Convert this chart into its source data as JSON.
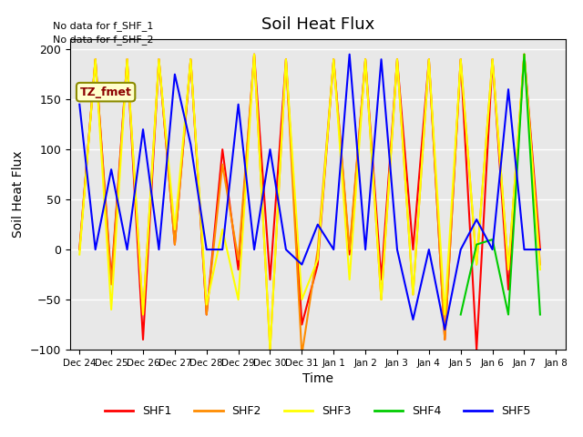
{
  "title": "Soil Heat Flux",
  "ylabel": "Soil Heat Flux",
  "xlabel": "Time",
  "annotations": [
    "No data for f_SHF_1",
    "No data for f_SHF_2"
  ],
  "legend_label": "TZ_fmet",
  "ylim": [
    -100,
    210
  ],
  "series": {
    "SHF1": {
      "color": "#ff0000",
      "x": [
        0,
        0.5,
        1,
        1.5,
        2,
        2.5,
        3,
        3.5,
        4,
        4.5,
        5,
        5.5,
        6,
        6.5,
        7,
        7.5,
        8,
        8.5,
        9,
        9.5,
        10,
        10.5,
        11,
        11.5,
        12,
        12.5,
        13,
        13.5,
        14,
        14.5
      ],
      "y": [
        0,
        190,
        -30,
        190,
        -90,
        190,
        5,
        190,
        -65,
        100,
        -20,
        195,
        -30,
        190,
        -75,
        -15,
        190,
        -5,
        190,
        -30,
        190,
        0,
        190,
        -90,
        190,
        -100,
        190,
        -40,
        195,
        0
      ]
    },
    "SHF2": {
      "color": "#ff8c00",
      "x": [
        0,
        0.5,
        1,
        1.5,
        2,
        2.5,
        3,
        3.5,
        4,
        4.5,
        5,
        5.5,
        6,
        6.5,
        7,
        7.5,
        8,
        8.5,
        9,
        9.5,
        10,
        10.5,
        11,
        11.5,
        12,
        12.5,
        13,
        13.5,
        14,
        14.5
      ],
      "y": [
        0,
        190,
        -35,
        190,
        -65,
        190,
        5,
        190,
        -65,
        85,
        -10,
        195,
        -100,
        190,
        -105,
        0,
        190,
        0,
        190,
        -50,
        190,
        -45,
        190,
        -90,
        190,
        -15,
        190,
        -20,
        195,
        -15
      ]
    },
    "SHF3": {
      "color": "#ffff00",
      "x": [
        0,
        0.5,
        1,
        1.5,
        2,
        2.5,
        3,
        3.5,
        4,
        4.5,
        5,
        5.5,
        6,
        6.5,
        7,
        7.5,
        8,
        8.5,
        9,
        9.5,
        10,
        10.5,
        11,
        11.5,
        12,
        12.5,
        13,
        13.5,
        14,
        14.5
      ],
      "y": [
        -5,
        190,
        -60,
        190,
        -65,
        190,
        20,
        190,
        -55,
        20,
        -50,
        195,
        -100,
        190,
        -50,
        -10,
        190,
        -30,
        190,
        -50,
        190,
        -45,
        190,
        -65,
        190,
        -15,
        190,
        -20,
        195,
        -20
      ]
    },
    "SHF4": {
      "color": "#00cc00",
      "x": [
        12,
        12.5,
        13,
        13.5,
        14,
        14.5
      ],
      "y": [
        -65,
        5,
        10,
        -65,
        195,
        -65
      ]
    },
    "SHF5": {
      "color": "#0000ff",
      "x": [
        0,
        0.5,
        1,
        1.5,
        2,
        2.5,
        3,
        3.5,
        4,
        4.5,
        5,
        5.5,
        6,
        6.5,
        7,
        7.5,
        8,
        8.5,
        9,
        9.5,
        10,
        10.5,
        11,
        11.5,
        12,
        12.5,
        13,
        13.5,
        14,
        14.5
      ],
      "y": [
        145,
        0,
        80,
        0,
        120,
        0,
        175,
        105,
        0,
        0,
        145,
        0,
        100,
        0,
        -15,
        25,
        0,
        195,
        0,
        190,
        0,
        -70,
        0,
        -80,
        0,
        30,
        0,
        160,
        0,
        0
      ]
    }
  },
  "xtick_positions": [
    0,
    1,
    2,
    3,
    4,
    5,
    6,
    7,
    8,
    9,
    10,
    11,
    12,
    13,
    14,
    15
  ],
  "xtick_labels": [
    "Dec 24",
    "Dec 25",
    "Dec 26",
    "Dec 27",
    "Dec 28",
    "Dec 29",
    "Dec 30",
    "Dec 31",
    "Jan 1",
    "Jan 2",
    "Jan 3",
    "Jan 4",
    "Jan 5",
    "Jan 6",
    "Jan 7",
    "Jan 8"
  ],
  "background_color": "#e8e8e8",
  "legend_box_color": "#ffffcc",
  "legend_box_edge": "#8b8b00"
}
